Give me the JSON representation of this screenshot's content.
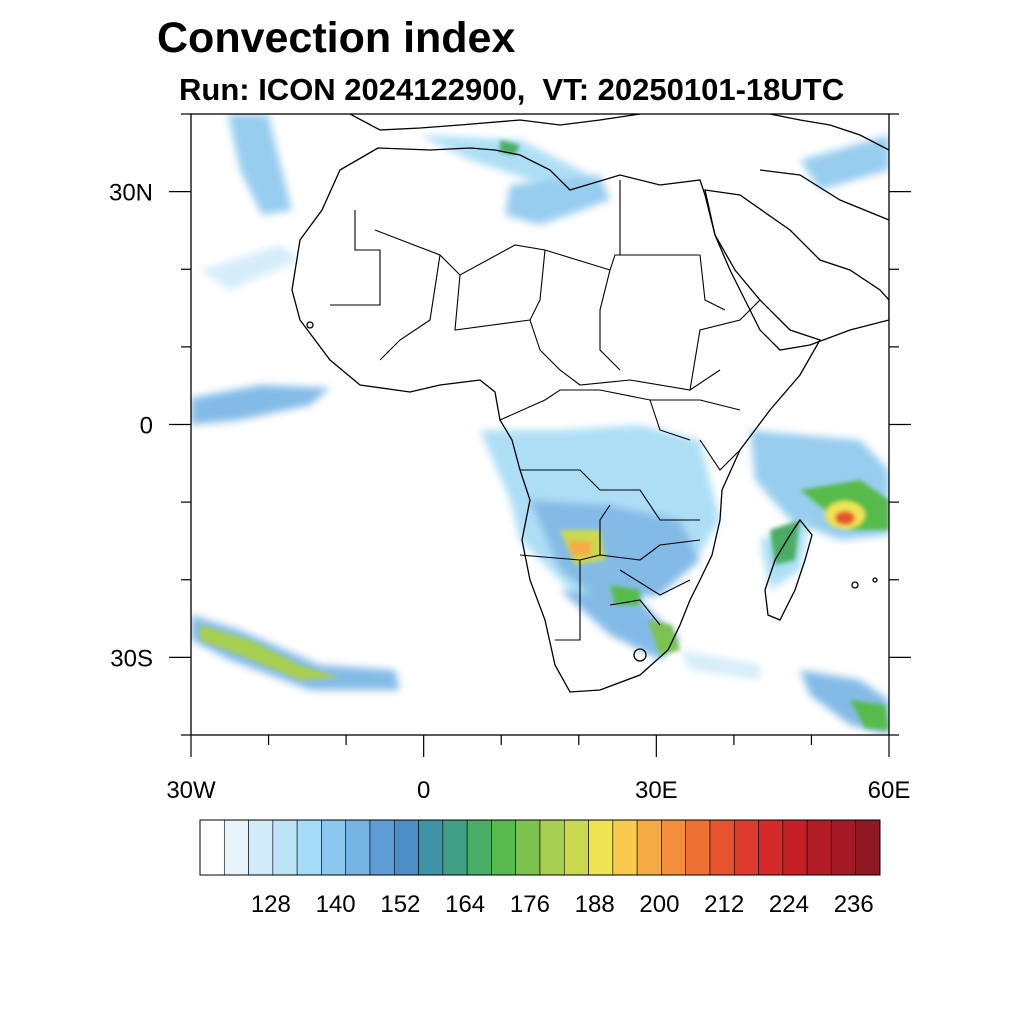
{
  "title": "Convection index",
  "subtitle": "Run: ICON 2024122900,  VT: 20250101-18UTC",
  "map": {
    "lon_range": [
      -30,
      60
    ],
    "lat_range": [
      -40,
      40
    ],
    "lat_tick_labels": [
      "30N",
      "0",
      "30S"
    ],
    "lon_tick_labels": [
      "30W",
      "0",
      "30E",
      "60E"
    ],
    "coastlines": true,
    "country_borders": true
  },
  "colorbar": {
    "orientation": "horizontal",
    "tick_labels": [
      "128",
      "140",
      "152",
      "164",
      "176",
      "188",
      "200",
      "212",
      "224",
      "236"
    ],
    "colors": [
      "#ffffff",
      "#e8f4fc",
      "#d2ebf9",
      "#bde3f8",
      "#a5dbf5",
      "#8cc8ee",
      "#76b4e4",
      "#5f9dd6",
      "#4c8fc6",
      "#3e93a6",
      "#419f83",
      "#48ad66",
      "#56bb4c",
      "#7bc24f",
      "#a7cf51",
      "#cbd951",
      "#efe453",
      "#f8cb4e",
      "#f6ab45",
      "#f38f3c",
      "#ef7034",
      "#e6532d",
      "#dd3b2b",
      "#d42a2b",
      "#c52028",
      "#b21c27",
      "#a31a26",
      "#8e1824"
    ]
  }
}
